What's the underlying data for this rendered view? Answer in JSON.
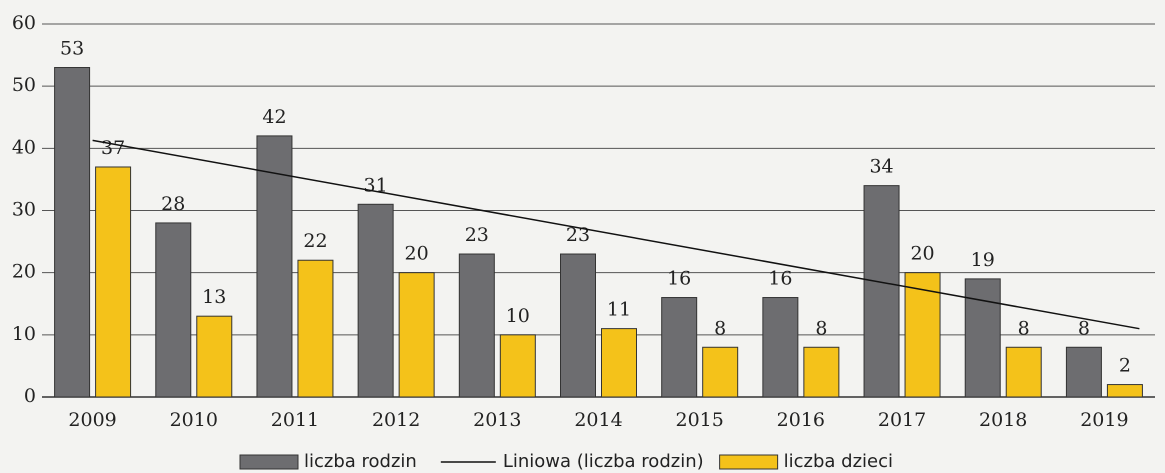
{
  "chart_data": {
    "type": "bar",
    "categories": [
      "2009",
      "2010",
      "2011",
      "2012",
      "2013",
      "2014",
      "2015",
      "2016",
      "2017",
      "2018",
      "2019"
    ],
    "series": [
      {
        "name": "liczba rodzin",
        "color": "#6d6d70",
        "values": [
          53,
          28,
          42,
          31,
          23,
          23,
          16,
          16,
          34,
          19,
          8
        ],
        "trendline": {
          "name": "Liniowa (liczba rodzin)",
          "type": "linear",
          "color": "#111111"
        }
      },
      {
        "name": "liczba dzieci",
        "color": "#f4c21a",
        "values": [
          37,
          13,
          22,
          20,
          10,
          11,
          8,
          8,
          20,
          8,
          2
        ]
      }
    ],
    "ylim": [
      0,
      60
    ],
    "yticks": [
      0,
      10,
      20,
      30,
      40,
      50,
      60
    ],
    "grid": true,
    "legend": "bottom"
  }
}
